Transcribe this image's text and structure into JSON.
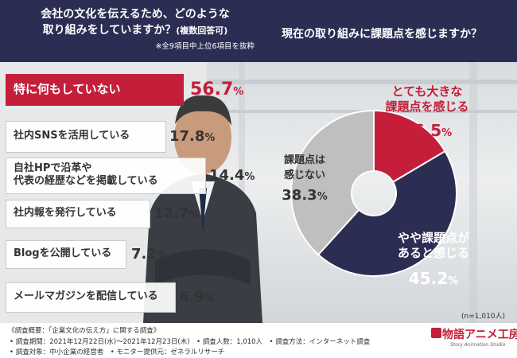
{
  "header": {
    "left_q_line1": "会社の文化を伝えるため、どのような",
    "left_q_line2": "取り組みをしていますか？",
    "left_q_suffix": "(複数回答可)",
    "left_note": "※全9項目中上位6項目を抜粋",
    "right_q": "現在の取り組みに課題点を感じますか？"
  },
  "colors": {
    "navy": "#2b2d53",
    "red": "#c41e3a",
    "gray": "#bfbfbf"
  },
  "chart_data": [
    {
      "type": "bar",
      "categories": [
        "特に何もしていない",
        "社内SNSを活用している",
        "自社HPで沿革や 代表の経歴などを掲載している",
        "社内報を発行している",
        "Blogを公開している",
        "メールマガジンを配信している"
      ],
      "values": [
        56.7,
        17.8,
        14.4,
        12.7,
        7.2,
        6.9
      ],
      "value_labels": [
        {
          "num": "56.7",
          "unit": "%"
        },
        {
          "num": "17.8",
          "unit": "%"
        },
        {
          "num": "14.4",
          "unit": "%"
        },
        {
          "num": "12.7",
          "unit": "%"
        },
        {
          "num": "7.2",
          "unit": "%"
        },
        {
          "num": "6.9",
          "unit": "%"
        }
      ],
      "label_lines": [
        [
          "特に何もしていない"
        ],
        [
          "社内SNSを活用している"
        ],
        [
          "自社HPで沿革や",
          "代表の経歴などを掲載している"
        ],
        [
          "社内報を発行している"
        ],
        [
          "Blogを公開している"
        ],
        [
          "メールマガジンを配信している"
        ]
      ]
    },
    {
      "type": "pie",
      "slices": [
        {
          "label_lines": [
            "とても大きな",
            "課題点を感じる"
          ],
          "value": 16.5,
          "num": "16.5",
          "unit": "%",
          "color": "#c41e3a"
        },
        {
          "label_lines": [
            "やや課題点が",
            "あると感じる"
          ],
          "value": 45.2,
          "num": "45.2",
          "unit": "%",
          "color": "#2b2d53"
        },
        {
          "label_lines": [
            "課題点は",
            "感じない"
          ],
          "value": 38.3,
          "num": "38.3",
          "unit": "%",
          "color": "#bfbfbf"
        }
      ],
      "n_note": "(n=1,010人)"
    }
  ],
  "footer": {
    "line1": "《調査概要：「企業文化の伝え方」に関する調査》",
    "line2": "• 調査期間：2021年12月22日(水)～2021年12月23日(木)　• 調査人数：1,010人　• 調査方法：インターネット調査",
    "line3": "• 調査対象：中小企業の経営者　• モニター提供元：ゼネラルリサーチ",
    "logo_main": "物語アニメ工房",
    "logo_sub": "Story Animation Studio"
  }
}
